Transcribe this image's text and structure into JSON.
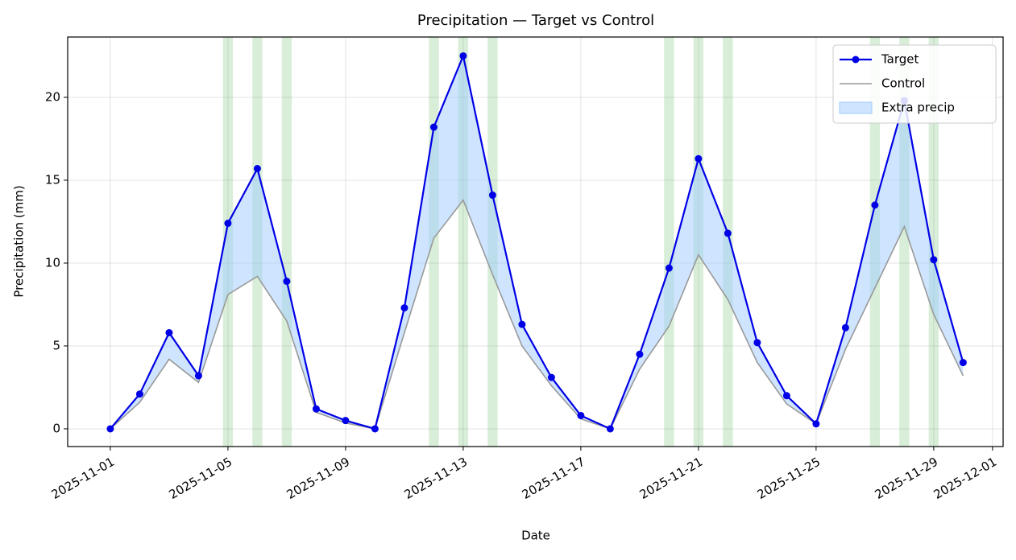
{
  "chart_data": {
    "type": "line",
    "title": "Precipitation — Target vs Control",
    "xlabel": "Date",
    "ylabel": "Precipitation (mm)",
    "x": [
      "2025-11-01",
      "2025-11-02",
      "2025-11-03",
      "2025-11-04",
      "2025-11-05",
      "2025-11-06",
      "2025-11-07",
      "2025-11-08",
      "2025-11-09",
      "2025-11-10",
      "2025-11-11",
      "2025-11-12",
      "2025-11-13",
      "2025-11-14",
      "2025-11-15",
      "2025-11-16",
      "2025-11-17",
      "2025-11-18",
      "2025-11-19",
      "2025-11-20",
      "2025-11-21",
      "2025-11-22",
      "2025-11-23",
      "2025-11-24",
      "2025-11-25",
      "2025-11-26",
      "2025-11-27",
      "2025-11-28",
      "2025-11-29",
      "2025-11-30"
    ],
    "series": [
      {
        "name": "Target",
        "color": "#0000e6",
        "values": [
          0,
          2.1,
          5.8,
          3.2,
          12.4,
          15.7,
          8.9,
          1.2,
          0.5,
          0,
          7.3,
          18.2,
          22.5,
          14.1,
          6.3,
          3.1,
          0.8,
          0,
          4.5,
          9.7,
          16.3,
          11.8,
          5.2,
          2.0,
          0.3,
          6.1,
          13.5,
          19.8,
          10.2,
          4.0
        ]
      },
      {
        "name": "Control",
        "color": "#999999",
        "values": [
          0,
          1.6,
          4.2,
          2.8,
          8.1,
          9.2,
          6.5,
          1.0,
          0.35,
          0,
          5.8,
          11.5,
          13.8,
          9.3,
          5.0,
          2.6,
          0.6,
          0,
          3.6,
          6.2,
          10.5,
          7.8,
          4.0,
          1.5,
          0.3,
          4.8,
          8.5,
          12.2,
          6.9,
          3.2
        ]
      }
    ],
    "fill": {
      "name": "Extra precip",
      "color": "#9fcbff"
    },
    "highlight": {
      "color": "#2ca02c",
      "dates": [
        "2025-11-05",
        "2025-11-06",
        "2025-11-07",
        "2025-11-12",
        "2025-11-13",
        "2025-11-14",
        "2025-11-20",
        "2025-11-21",
        "2025-11-22",
        "2025-11-27",
        "2025-11-28",
        "2025-11-29"
      ]
    },
    "xlim": [
      "2025-10-30T13:12:00Z",
      "2025-12-01T08:38:00Z"
    ],
    "xticks": [
      "2025-11-01",
      "2025-11-05",
      "2025-11-09",
      "2025-11-13",
      "2025-11-17",
      "2025-11-21",
      "2025-11-25",
      "2025-11-29",
      "2025-12-01"
    ],
    "ylim": [
      -1.07,
      23.64
    ],
    "yticks": [
      0,
      5,
      10,
      15,
      20
    ],
    "grid": true,
    "legend": "upper right"
  }
}
